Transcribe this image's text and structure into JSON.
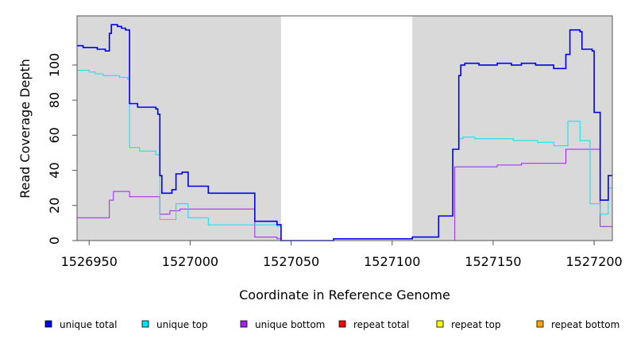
{
  "chart_data": {
    "type": "line",
    "step": true,
    "title": "",
    "xlabel": "Coordinate in Reference Genome",
    "ylabel": "Read Coverage Depth",
    "xlim": [
      1526944,
      1527209
    ],
    "ylim": [
      0,
      128
    ],
    "x_ticks": [
      1526950,
      1527000,
      1527050,
      1527100,
      1527150,
      1527200
    ],
    "y_ticks": [
      0,
      20,
      40,
      60,
      80,
      100
    ],
    "shaded_regions": [
      [
        1526944,
        1527045
      ],
      [
        1527110,
        1527209
      ]
    ],
    "shade_color": "#d9d9d9",
    "grid": false,
    "legend_position": "bottom",
    "series": [
      {
        "name": "unique total",
        "color": "#0000ee",
        "points": [
          [
            1526944,
            111
          ],
          [
            1526947,
            110
          ],
          [
            1526954,
            109
          ],
          [
            1526958,
            108
          ],
          [
            1526960,
            118
          ],
          [
            1526961,
            123
          ],
          [
            1526964,
            122
          ],
          [
            1526966,
            121
          ],
          [
            1526968,
            120
          ],
          [
            1526970,
            78
          ],
          [
            1526974,
            76
          ],
          [
            1526983,
            75
          ],
          [
            1526984,
            72
          ],
          [
            1526985,
            37
          ],
          [
            1526986,
            27
          ],
          [
            1526991,
            29
          ],
          [
            1526993,
            38
          ],
          [
            1526996,
            39
          ],
          [
            1526999,
            31
          ],
          [
            1527009,
            27
          ],
          [
            1527032,
            11
          ],
          [
            1527043,
            9
          ],
          [
            1527045,
            0
          ],
          [
            1527071,
            1
          ],
          [
            1527110,
            2
          ],
          [
            1527123,
            14
          ],
          [
            1527130,
            52
          ],
          [
            1527133,
            94
          ],
          [
            1527134,
            100
          ],
          [
            1527136,
            101
          ],
          [
            1527143,
            100
          ],
          [
            1527152,
            101
          ],
          [
            1527159,
            100
          ],
          [
            1527164,
            101
          ],
          [
            1527171,
            100
          ],
          [
            1527180,
            98
          ],
          [
            1527186,
            106
          ],
          [
            1527188,
            120
          ],
          [
            1527193,
            119
          ],
          [
            1527194,
            109
          ],
          [
            1527199,
            108
          ],
          [
            1527200,
            73
          ],
          [
            1527203,
            23
          ],
          [
            1527207,
            37
          ],
          [
            1527209,
            37
          ]
        ]
      },
      {
        "name": "unique top",
        "color": "#00e5ee",
        "points": [
          [
            1526944,
            97
          ],
          [
            1526950,
            96
          ],
          [
            1526953,
            95
          ],
          [
            1526957,
            94
          ],
          [
            1526965,
            93
          ],
          [
            1526969,
            92
          ],
          [
            1526970,
            53
          ],
          [
            1526975,
            51
          ],
          [
            1526983,
            49
          ],
          [
            1526985,
            12
          ],
          [
            1526993,
            21
          ],
          [
            1526999,
            13
          ],
          [
            1527009,
            9
          ],
          [
            1527043,
            8
          ],
          [
            1527045,
            0
          ],
          [
            1527071,
            1
          ],
          [
            1527110,
            2
          ],
          [
            1527123,
            14
          ],
          [
            1527130,
            52
          ],
          [
            1527133,
            58
          ],
          [
            1527135,
            59
          ],
          [
            1527141,
            58
          ],
          [
            1527160,
            57
          ],
          [
            1527172,
            56
          ],
          [
            1527180,
            54
          ],
          [
            1527187,
            68
          ],
          [
            1527193,
            57
          ],
          [
            1527198,
            21
          ],
          [
            1527203,
            15
          ],
          [
            1527207,
            30
          ],
          [
            1527209,
            30
          ]
        ]
      },
      {
        "name": "unique bottom",
        "color": "#a020f0",
        "points": [
          [
            1526944,
            13
          ],
          [
            1526960,
            23
          ],
          [
            1526962,
            28
          ],
          [
            1526970,
            25
          ],
          [
            1526985,
            15
          ],
          [
            1526990,
            17
          ],
          [
            1526995,
            18
          ],
          [
            1527032,
            2
          ],
          [
            1527043,
            1
          ],
          [
            1527045,
            0
          ],
          [
            1527131,
            42
          ],
          [
            1527152,
            43
          ],
          [
            1527164,
            44
          ],
          [
            1527186,
            52
          ],
          [
            1527203,
            8
          ],
          [
            1527209,
            8
          ]
        ]
      },
      {
        "name": "repeat total",
        "color": "#ff0000",
        "points": [
          [
            1526944,
            0
          ],
          [
            1527209,
            0
          ]
        ]
      },
      {
        "name": "repeat top",
        "color": "#ffff00",
        "points": [
          [
            1526944,
            0
          ],
          [
            1527209,
            0
          ]
        ]
      },
      {
        "name": "repeat bottom",
        "color": "#ffa500",
        "points": [
          [
            1526944,
            0
          ],
          [
            1527209,
            0
          ]
        ]
      }
    ]
  }
}
